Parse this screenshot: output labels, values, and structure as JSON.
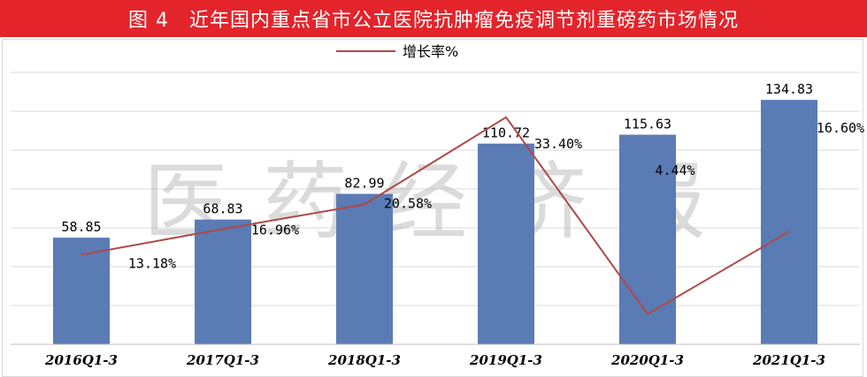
{
  "title": "图 4　近年国内重点省市公立医院抗肿瘤免疫调节剂重磅药市场情况",
  "watermark": "医药经济报",
  "colors": {
    "title_bg": "#e3242b",
    "bar": "#5b7bb5",
    "line": "#b04848",
    "grid": "#d9d9d9"
  },
  "chart_data": {
    "type": "bar",
    "title": "图 4　近年国内重点省市公立医院抗肿瘤免疫调节剂重磅药市场情况",
    "categories": [
      "2016Q1-3",
      "2017Q1-3",
      "2018Q1-3",
      "2019Q1-3",
      "2020Q1-3",
      "2021Q1-3"
    ],
    "series": [
      {
        "values": [
          58.85,
          68.83,
          82.99,
          110.72,
          115.63,
          134.83
        ],
        "labels": [
          "58.85",
          "68.83",
          "82.99",
          "110.72",
          "115.63",
          "134.83"
        ]
      },
      {
        "name": "增长率%",
        "type": "line",
        "values": [
          13.18,
          16.96,
          20.58,
          33.4,
          4.44,
          16.6
        ],
        "labels": [
          "13.18%",
          "16.96%",
          "20.58%",
          "33.40%",
          "4.44%",
          "16.60%"
        ]
      }
    ],
    "ylim": [
      0,
      150
    ],
    "y2lim": [
      0,
      40
    ],
    "grid": true,
    "legend": "top"
  }
}
